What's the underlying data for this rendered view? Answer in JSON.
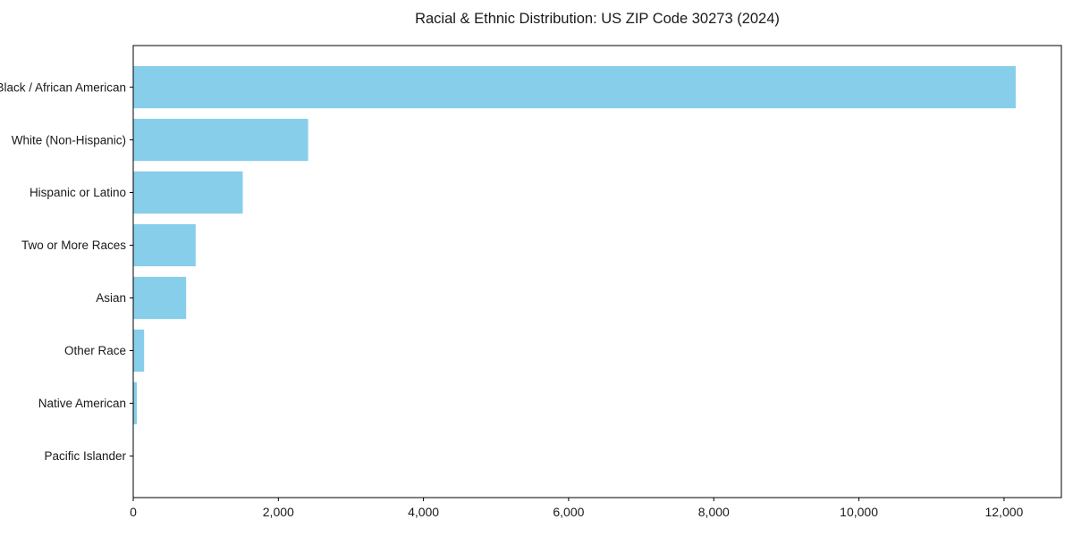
{
  "chart_data": {
    "type": "bar",
    "orientation": "horizontal",
    "title": "Racial & Ethnic Distribution: US ZIP Code 30273 (2024)",
    "categories": [
      "Black / African American",
      "White (Non-Hispanic)",
      "Hispanic or Latino",
      "Two or More Races",
      "Asian",
      "Other Race",
      "Native American",
      "Pacific Islander"
    ],
    "values": [
      12160,
      2410,
      1510,
      860,
      730,
      150,
      50,
      0
    ],
    "xlabel": "",
    "ylabel": "",
    "xlim": [
      0,
      12790
    ],
    "xticks": [
      0,
      2000,
      4000,
      6000,
      8000,
      10000,
      12000
    ],
    "xtick_labels": [
      "0",
      "2,000",
      "4,000",
      "6,000",
      "8,000",
      "10,000",
      "12,000"
    ],
    "grid": false,
    "legend": false,
    "bar_color": "#87CEEB",
    "frame_color": "#000000",
    "text_color": "#1a1a1a"
  }
}
